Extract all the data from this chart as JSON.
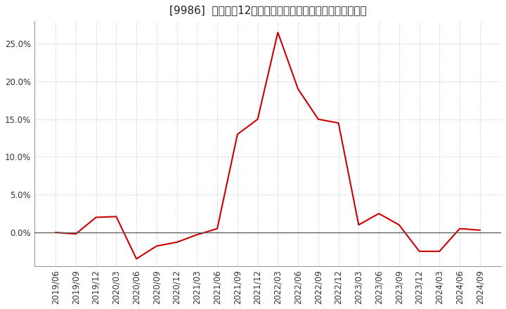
{
  "title": "[9986]  売上高の12か月移動合計の対前年同期増減率の推移",
  "line_color": "#cc0000",
  "background_color": "#ffffff",
  "plot_bg_color": "#ffffff",
  "grid_color": "#bbbbbb",
  "dates": [
    "2019/06",
    "2019/09",
    "2019/12",
    "2020/03",
    "2020/06",
    "2020/09",
    "2020/12",
    "2021/03",
    "2021/06",
    "2021/09",
    "2021/12",
    "2022/03",
    "2022/06",
    "2022/09",
    "2022/12",
    "2023/03",
    "2023/06",
    "2023/09",
    "2023/12",
    "2024/03",
    "2024/06",
    "2024/09"
  ],
  "values": [
    0.0,
    -0.2,
    2.0,
    2.1,
    -3.5,
    -1.8,
    -1.3,
    -0.3,
    0.5,
    13.0,
    15.0,
    26.5,
    19.0,
    15.0,
    14.5,
    1.0,
    2.5,
    1.0,
    -2.5,
    -2.5,
    0.5,
    0.3
  ],
  "yticks": [
    0.0,
    5.0,
    10.0,
    15.0,
    20.0,
    25.0
  ],
  "ylim": [
    -4.5,
    28.0
  ],
  "zero_line_color": "#555555",
  "title_fontsize": 11,
  "tick_fontsize": 8.5
}
